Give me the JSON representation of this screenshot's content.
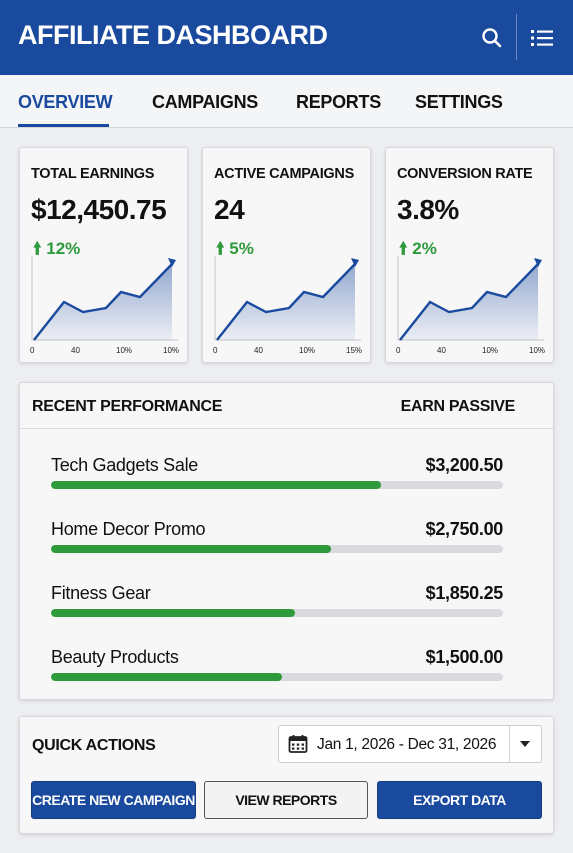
{
  "header": {
    "title": "AFFILIATE DASHBOARD",
    "search_icon": "search-icon",
    "menu_icon": "list-menu-icon",
    "bg_color": "#1a4a9e"
  },
  "tabs": [
    {
      "label": "OVERVIEW",
      "active": true
    },
    {
      "label": "CAMPAIGNS",
      "active": false
    },
    {
      "label": "REPORTS",
      "active": false
    },
    {
      "label": "SETTINGS",
      "active": false
    }
  ],
  "stats": [
    {
      "label": "TOTAL EARNINGS",
      "value": "$12,450.75",
      "delta": "12%",
      "delta_icon": "arrow-up-icon",
      "ticks": [
        "0",
        "40",
        "10%",
        "10%"
      ]
    },
    {
      "label": "ACTIVE CAMPAIGNS",
      "value": "24",
      "delta": "5%",
      "delta_icon": "arrow-up-icon",
      "ticks": [
        "0",
        "40",
        "10%",
        "15%"
      ]
    },
    {
      "label": "CONVERSION RATE",
      "value": "3.8%",
      "delta": "2%",
      "delta_icon": "arrow-up-icon",
      "ticks": [
        "0",
        "40",
        "10%",
        "10%"
      ]
    }
  ],
  "performance": {
    "title": "RECENT PERFORMANCE",
    "right_label": "EARN PASSIVE",
    "rows": [
      {
        "name": "Tech Gadgets Sale",
        "amount": "$3,200.50",
        "progress": 0.73
      },
      {
        "name": "Home Decor Promo",
        "amount": "$2,750.00",
        "progress": 0.62
      },
      {
        "name": "Fitness Gear",
        "amount": "$1,850.25",
        "progress": 0.54
      },
      {
        "name": "Beauty Products",
        "amount": "$1,500.00",
        "progress": 0.51
      }
    ],
    "progress_color": "#2f9a3c"
  },
  "quick_actions": {
    "title": "QUICK ACTIONS",
    "date_range": "Jan 1, 2026 - Dec 31, 2026",
    "calendar_icon": "calendar-icon",
    "buttons": {
      "create": "CREATE NEW CAMPAIGN",
      "view": "VIEW REPORTS",
      "export": "EXPORT DATA"
    }
  },
  "colors": {
    "accent": "#1a4a9e",
    "positive": "#2f9a3c"
  }
}
